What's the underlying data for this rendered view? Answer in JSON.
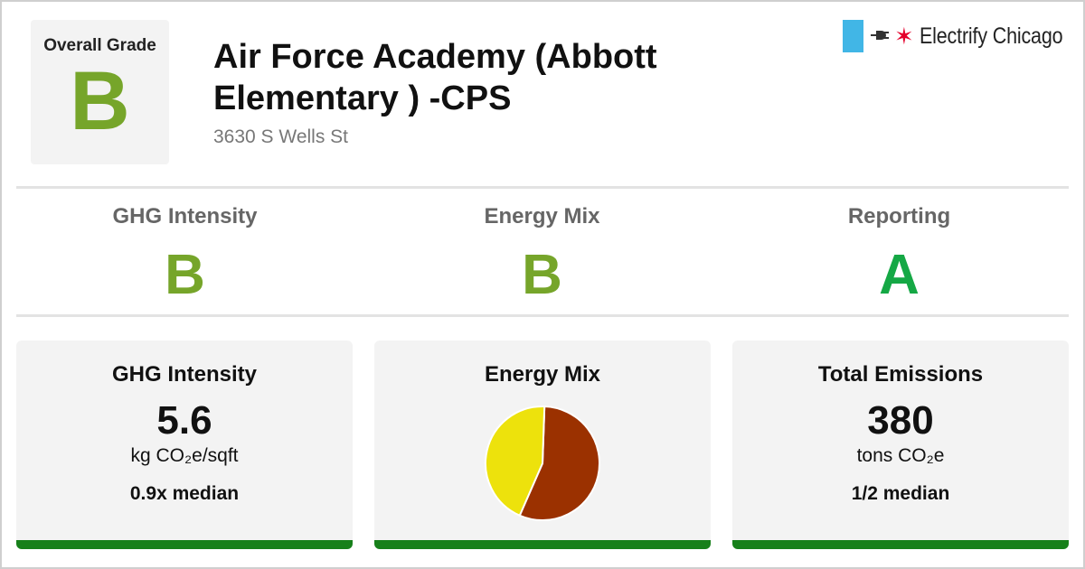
{
  "colors": {
    "grade_B": "#76a52a",
    "grade_A": "#15a845",
    "pie_electric": "#9b3100",
    "pie_gas": "#ede20c",
    "card_bar": "#17801a",
    "logo_flag": "#41b6e6",
    "logo_star": "#e4002b"
  },
  "overall": {
    "label": "Overall Grade",
    "grade": "B"
  },
  "building": {
    "name": "Air Force Academy (Abbott Elementary ) -CPS",
    "address": "3630 S Wells St"
  },
  "logo": {
    "text": "Electrify Chicago",
    "plug_icon": "plug-icon",
    "star_icon": "chicago-star-icon",
    "star": "✶"
  },
  "grades": [
    {
      "label": "GHG Intensity",
      "grade": "B"
    },
    {
      "label": "Energy Mix",
      "grade": "B"
    },
    {
      "label": "Reporting",
      "grade": "A"
    }
  ],
  "cards": {
    "ghg": {
      "title": "GHG Intensity",
      "value": "5.6",
      "unit": "kg CO₂e/sqft",
      "median": "0.9x median"
    },
    "energy_mix": {
      "title": "Energy Mix"
    },
    "emissions": {
      "title": "Total Emissions",
      "value": "380",
      "unit": "tons CO₂e",
      "median": "1/2 median"
    }
  },
  "chart_data": {
    "type": "pie",
    "slices": [
      {
        "value": 56
      },
      {
        "value": 44
      }
    ]
  }
}
